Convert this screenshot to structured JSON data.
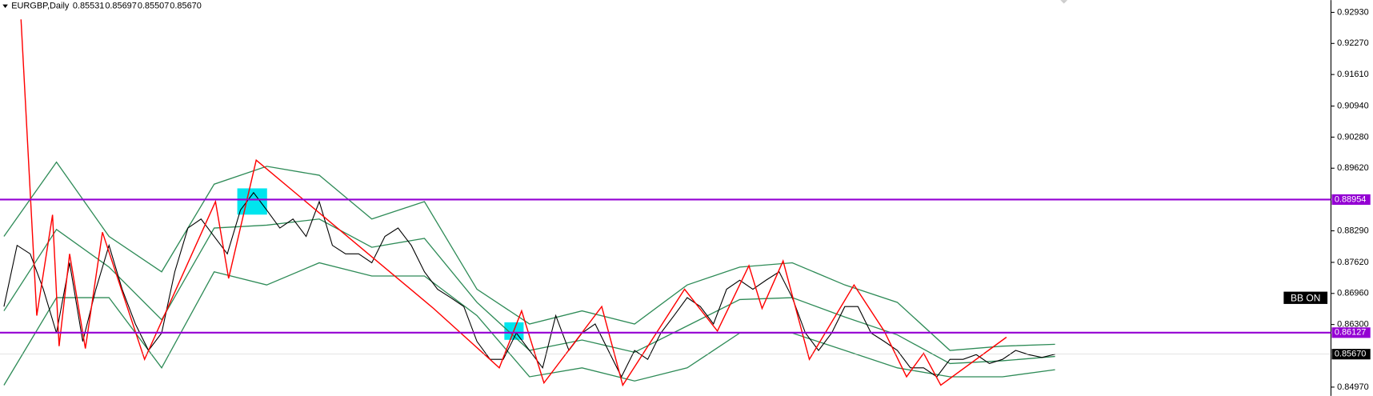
{
  "chart_data": {
    "type": "line",
    "header": {
      "symbol": "EURGBP,Daily",
      "ohlc": [
        "0.85531",
        "0.85697",
        "0.85507",
        "0.85670"
      ]
    },
    "button": "BB ON",
    "xlim": [
      -0.3,
      101
    ],
    "ylim": [
      0.84784,
      0.9319
    ],
    "yticks": [
      {
        "value": 0.9293,
        "label": "0.92930"
      },
      {
        "value": 0.9227,
        "label": "0.92270"
      },
      {
        "value": 0.9161,
        "label": "0.91610"
      },
      {
        "value": 0.9094,
        "label": "0.90940"
      },
      {
        "value": 0.9028,
        "label": "0.90280"
      },
      {
        "value": 0.8962,
        "label": "0.89620"
      },
      {
        "value": 0.8829,
        "label": "0.88290"
      },
      {
        "value": 0.8762,
        "label": "0.87620"
      },
      {
        "value": 0.8696,
        "label": "0.86960"
      },
      {
        "value": 0.863,
        "label": "0.86300"
      },
      {
        "value": 0.8497,
        "label": "0.84970"
      }
    ],
    "closes": {
      "name": "EURGBP",
      "color": "#000000",
      "values": [
        0.8668,
        0.8798,
        0.878,
        0.8705,
        0.8612,
        0.8761,
        0.8594,
        0.8705,
        0.8798,
        0.8705,
        0.8631,
        0.8575,
        0.8612,
        0.8742,
        0.8835,
        0.8854,
        0.8817,
        0.878,
        0.8873,
        0.891,
        0.8873,
        0.8835,
        0.8854,
        0.8817,
        0.8891,
        0.8798,
        0.878,
        0.878,
        0.8761,
        0.8817,
        0.8835,
        0.8798,
        0.8742,
        0.8705,
        0.8687,
        0.8668,
        0.8594,
        0.8556,
        0.8556,
        0.8612,
        0.8575,
        0.8538,
        0.8649,
        0.8575,
        0.8612,
        0.8631,
        0.8575,
        0.8519,
        0.8575,
        0.8556,
        0.8612,
        0.8649,
        0.8687,
        0.8668,
        0.8631,
        0.8705,
        0.8724,
        0.8705,
        0.8724,
        0.8742,
        0.8687,
        0.8612,
        0.8575,
        0.8612,
        0.8668,
        0.8668,
        0.8612,
        0.8594,
        0.8575,
        0.8538,
        0.8538,
        0.8519,
        0.8556,
        0.8556,
        0.8566,
        0.8547,
        0.8556,
        0.8575,
        0.8566,
        0.856,
        0.8567
      ]
    },
    "bands": {
      "color": "#2e8b57",
      "x": [
        0,
        4,
        8,
        12,
        16,
        20,
        24,
        28,
        32,
        36,
        40,
        44,
        48,
        52,
        56,
        60,
        64,
        68,
        72,
        76,
        80
      ],
      "series": [
        {
          "values": [
            0.8817,
            0.8975,
            0.8817,
            0.8742,
            0.8928,
            0.8966,
            0.8947,
            0.8854,
            0.8891,
            0.8705,
            0.8631,
            0.8659,
            0.8631,
            0.8714,
            0.8752,
            0.8761,
            0.8714,
            0.8677,
            0.8575,
            0.8584,
            0.8588
          ]
        },
        {
          "values": [
            0.8659,
            0.8832,
            0.8752,
            0.864,
            0.8835,
            0.8841,
            0.8854,
            0.8794,
            0.8813,
            0.8677,
            0.8575,
            0.8597,
            0.8571,
            0.8627,
            0.8683,
            0.8687,
            0.8646,
            0.8608,
            0.8547,
            0.8553,
            0.8562
          ]
        },
        {
          "values": [
            0.8501,
            0.8687,
            0.8687,
            0.8538,
            0.8742,
            0.8714,
            0.8761,
            0.8733,
            0.8733,
            0.8649,
            0.8519,
            0.8538,
            0.851,
            0.8538,
            0.8612,
            0.8612,
            0.8575,
            0.8538,
            0.8519,
            0.8519,
            0.8534
          ]
        }
      ]
    },
    "zigzag": {
      "color": "#ff0000",
      "x": [
        1.3,
        2.5,
        3.7,
        4.2,
        5,
        6.2,
        7.5,
        10.7,
        16.1,
        17.1,
        19.2,
        32.7,
        37.7,
        39.4,
        41.1,
        45.5,
        47.1,
        51.8,
        54.3,
        56.7,
        57.7,
        59.3,
        61.3,
        64.7,
        67,
        68.7,
        70,
        71.3,
        76.3
      ],
      "values": [
        0.9278,
        0.8649,
        0.8863,
        0.8584,
        0.878,
        0.8579,
        0.8826,
        0.8556,
        0.8891,
        0.8728,
        0.8979,
        0.8664,
        0.8538,
        0.8659,
        0.8506,
        0.8668,
        0.8501,
        0.8705,
        0.8616,
        0.8755,
        0.8664,
        0.8765,
        0.8556,
        0.8714,
        0.8616,
        0.8519,
        0.8569,
        0.8501,
        0.8603
      ]
    },
    "levels": [
      {
        "value": 0.88954,
        "label": "0.88954",
        "color": "#9400d3"
      },
      {
        "value": 0.86127,
        "label": "0.86127",
        "color": "#9400d3"
      }
    ],
    "current": {
      "value": 0.8567,
      "label": "0.85670",
      "color": "#000000"
    }
  }
}
